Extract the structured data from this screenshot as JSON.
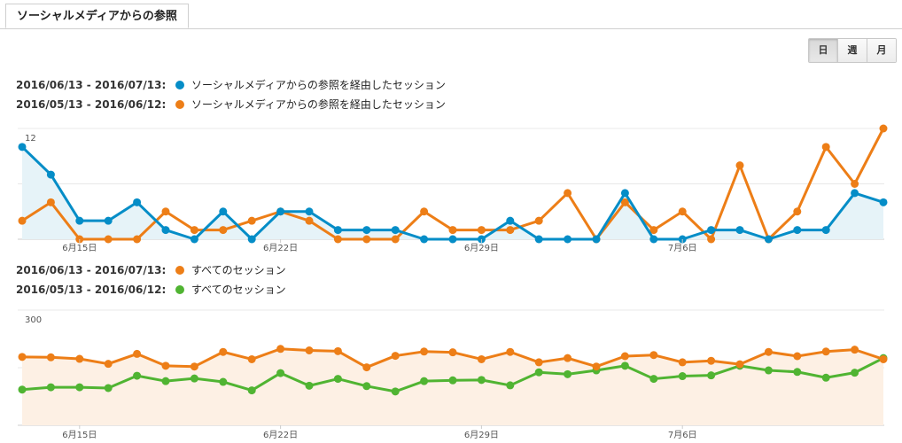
{
  "tab": {
    "label": "ソーシャルメディアからの参照"
  },
  "granularity": {
    "options": [
      "日",
      "週",
      "月"
    ],
    "selected": "日"
  },
  "colors": {
    "blue": "#058dc7",
    "orange": "#ed7e17",
    "green": "#50b432",
    "blue_fill": "#e6f3f8",
    "orange_fill": "#fdf0e4"
  },
  "chart_data": [
    {
      "type": "line",
      "legend": [
        {
          "range": "2016/06/13 - 2016/07/13:",
          "name": "ソーシャルメディアからの参照を経由したセッション",
          "color": "#058dc7"
        },
        {
          "range": "2016/05/13 - 2016/06/12:",
          "name": "ソーシャルメディアからの参照を経由したセッション",
          "color": "#ed7e17"
        }
      ],
      "ylim": [
        0,
        12
      ],
      "yticks": [
        6,
        12
      ],
      "xticks": [
        {
          "index": 2,
          "label": "6月15日"
        },
        {
          "index": 9,
          "label": "6月22日"
        },
        {
          "index": 16,
          "label": "6月29日"
        },
        {
          "index": 23,
          "label": "7月6日"
        }
      ],
      "series": [
        {
          "color": "#058dc7",
          "fill": "#e6f3f8",
          "values": [
            10,
            7,
            2,
            2,
            4,
            1,
            0,
            3,
            0,
            3,
            3,
            1,
            1,
            1,
            0,
            0,
            0,
            2,
            0,
            0,
            0,
            5,
            0,
            0,
            1,
            1,
            0,
            1,
            1,
            5,
            4
          ]
        },
        {
          "color": "#ed7e17",
          "values": [
            2,
            4,
            0,
            0,
            0,
            3,
            1,
            1,
            2,
            3,
            2,
            0,
            0,
            0,
            3,
            1,
            1,
            1,
            2,
            5,
            0,
            4,
            1,
            3,
            0,
            8,
            0,
            3,
            10,
            6,
            12
          ]
        }
      ]
    },
    {
      "type": "line",
      "legend": [
        {
          "range": "2016/06/13 - 2016/07/13:",
          "name": "すべてのセッション",
          "color": "#ed7e17"
        },
        {
          "range": "2016/05/13 - 2016/06/12:",
          "name": "すべてのセッション",
          "color": "#50b432"
        }
      ],
      "ylim": [
        0,
        300
      ],
      "yticks": [
        150,
        300
      ],
      "xticks": [
        {
          "index": 2,
          "label": "6月15日"
        },
        {
          "index": 9,
          "label": "6月22日"
        },
        {
          "index": 16,
          "label": "6月29日"
        },
        {
          "index": 23,
          "label": "7月6日"
        }
      ],
      "series": [
        {
          "color": "#ed7e17",
          "fill": "#fdf0e4",
          "values": [
            178,
            177,
            173,
            160,
            186,
            155,
            153,
            191,
            172,
            199,
            195,
            193,
            151,
            181,
            192,
            190,
            172,
            191,
            164,
            175,
            153,
            180,
            183,
            164,
            168,
            159,
            191,
            180,
            192,
            197,
            172
          ]
        },
        {
          "color": "#50b432",
          "values": [
            93,
            99,
            99,
            97,
            129,
            115,
            122,
            113,
            91,
            136,
            103,
            121,
            102,
            88,
            115,
            117,
            118,
            104,
            138,
            133,
            143,
            155,
            121,
            128,
            130,
            155,
            143,
            139,
            124,
            137,
            175
          ]
        }
      ]
    }
  ]
}
